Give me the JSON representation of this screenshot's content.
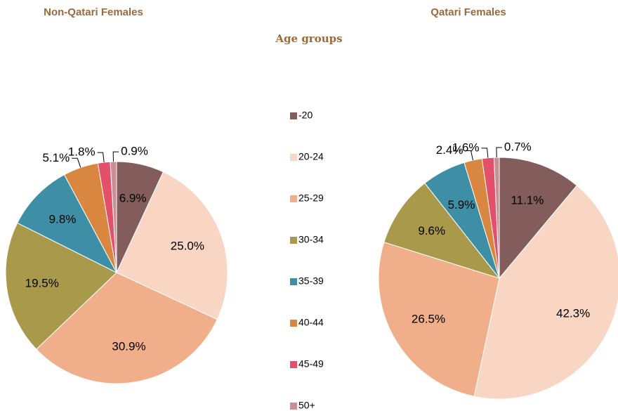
{
  "subtitle": "Age groups",
  "categories": [
    "-20",
    "20-24",
    "25-29",
    "30-34",
    "35-39",
    "40-44",
    "45-49",
    "50+"
  ],
  "colors": [
    "#835c5c",
    "#f9d5c3",
    "#f0ae8a",
    "#a89a4a",
    "#3e8fa5",
    "#d98640",
    "#e2506a",
    "#c98f94"
  ],
  "chart_data": [
    {
      "type": "pie",
      "title": "Non-Qatari Females",
      "values": [
        6.9,
        25.0,
        30.9,
        19.5,
        9.8,
        5.1,
        1.8,
        0.9
      ],
      "value_labels": [
        "6.9%",
        "25.0%",
        "30.9%",
        "19.5%",
        "9.8%",
        "5.1%",
        "1.8%",
        "0.9%"
      ]
    },
    {
      "type": "pie",
      "title": "Qatari Females",
      "values": [
        11.1,
        42.3,
        26.5,
        9.6,
        5.9,
        2.4,
        1.6,
        0.7
      ],
      "value_labels": [
        "11.1%",
        "42.3%",
        "26.5%",
        "9.6%",
        "5.9%",
        "2.4%",
        "1.6%",
        "0.7%"
      ]
    }
  ]
}
